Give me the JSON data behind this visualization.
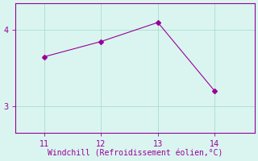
{
  "x": [
    11,
    12,
    13,
    14
  ],
  "y": [
    3.65,
    3.85,
    4.1,
    3.2
  ],
  "line_color": "#990099",
  "marker": "D",
  "linestyle": "-",
  "linewidth": 0.8,
  "markersize": 3,
  "xlabel": "Windchill (Refroidissement éolien,°C)",
  "xlabel_color": "#990099",
  "xlabel_fontsize": 7,
  "xlim": [
    10.5,
    14.7
  ],
  "ylim": [
    2.65,
    4.35
  ],
  "xticks": [
    11,
    12,
    13,
    14
  ],
  "yticks": [
    3,
    4
  ],
  "tick_color": "#990099",
  "tick_fontsize": 7,
  "background_color": "#daf5f0",
  "grid_color": "#aaddcc",
  "grid_linewidth": 0.6,
  "figure_bg": "#daf5f0",
  "spine_color": "#990099"
}
